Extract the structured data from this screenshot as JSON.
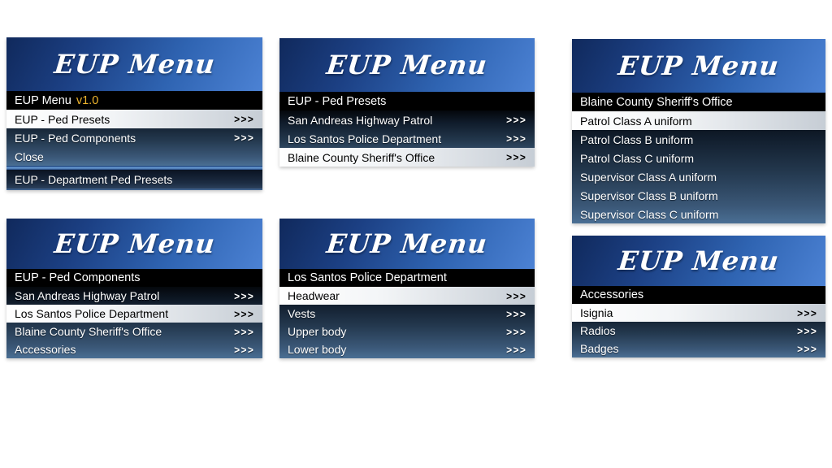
{
  "app": {
    "name": "EUP Menu"
  },
  "ui": {
    "arrows_icon": ">>>"
  },
  "colors": {
    "banner_blue_dark": "#10295c",
    "banner_blue_light": "#4c82d4",
    "subtitle_bar_black": "#000000",
    "version_gold": "#eeb42e",
    "row_gradient_top": "#04070c",
    "row_gradient_bottom": "#4a6f94",
    "selected_row_from": "#ffffff",
    "selected_row_to": "#c6cdd5"
  },
  "panels": [
    {
      "header": "EUP Menu",
      "title": {
        "label": "EUP Menu",
        "version": "v1.0"
      },
      "items": [
        {
          "label": "EUP - Ped Presets",
          "arrows": true,
          "selected": true
        },
        {
          "label": "EUP - Ped Components",
          "arrows": true,
          "selected": false
        },
        {
          "label": "Close",
          "arrows": false,
          "selected": false
        }
      ],
      "footer_bar": "EUP - Department Ped Presets"
    },
    {
      "header": "EUP Menu",
      "title": {
        "label": "EUP - Ped Presets"
      },
      "items": [
        {
          "label": "San Andreas Highway Patrol",
          "arrows": true,
          "selected": false
        },
        {
          "label": "Los Santos Police Department",
          "arrows": true,
          "selected": false
        },
        {
          "label": "Blaine County Sheriff's Office",
          "arrows": true,
          "selected": true
        }
      ]
    },
    {
      "header": "EUP Menu",
      "title": {
        "label": "Blaine County Sheriff's Office"
      },
      "items": [
        {
          "label": "Patrol Class A uniform",
          "arrows": false,
          "selected": true
        },
        {
          "label": "Patrol Class B uniform",
          "arrows": false,
          "selected": false
        },
        {
          "label": "Patrol Class C uniform",
          "arrows": false,
          "selected": false
        },
        {
          "label": "Supervisor Class A uniform",
          "arrows": false,
          "selected": false
        },
        {
          "label": "Supervisor Class B uniform",
          "arrows": false,
          "selected": false
        },
        {
          "label": "Supervisor Class C uniform",
          "arrows": false,
          "selected": false
        }
      ]
    },
    {
      "header": "EUP Menu",
      "title": {
        "label": "EUP - Ped Components"
      },
      "items": [
        {
          "label": "San Andreas Highway Patrol",
          "arrows": true,
          "selected": false
        },
        {
          "label": "Los Santos Police Department",
          "arrows": true,
          "selected": true
        },
        {
          "label": "Blaine County Sheriff's Office",
          "arrows": true,
          "selected": false
        },
        {
          "label": "Accessories",
          "arrows": true,
          "selected": false
        }
      ]
    },
    {
      "header": "EUP Menu",
      "title": {
        "label": "Los Santos Police Department"
      },
      "items": [
        {
          "label": "Headwear",
          "arrows": true,
          "selected": true
        },
        {
          "label": "Vests",
          "arrows": true,
          "selected": false
        },
        {
          "label": "Upper body",
          "arrows": true,
          "selected": false
        },
        {
          "label": "Lower body",
          "arrows": true,
          "selected": false
        }
      ]
    },
    {
      "header": "EUP Menu",
      "title": {
        "label": "Accessories"
      },
      "items": [
        {
          "label": "Isignia",
          "arrows": true,
          "selected": true
        },
        {
          "label": "Radios",
          "arrows": true,
          "selected": false
        },
        {
          "label": "Badges",
          "arrows": true,
          "selected": false
        }
      ]
    }
  ]
}
